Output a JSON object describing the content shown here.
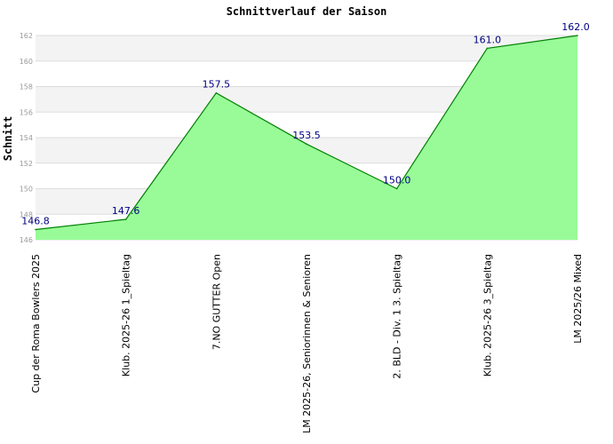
{
  "chart_data": {
    "type": "area",
    "title": "Schnittverlauf der Saison",
    "xlabel": "",
    "ylabel": "Schnitt",
    "categories": [
      "Cup der Roma Bowlers 2025",
      "Klub. 2025-26  1_Spieltag",
      "7.NO GUTTER Open",
      "LM 2025-26, Seniorinnen & Senioren",
      "2. BLD - Div. 1  3. Spieltag",
      "Klub. 2025-26  3_Spieltag",
      "LM 2025/26 Mixed"
    ],
    "values": [
      146.8,
      147.6,
      157.5,
      153.5,
      150.0,
      161.0,
      162.0
    ],
    "data_labels": [
      "146.8",
      "147.6",
      "157.5",
      "153.5",
      "150.0",
      "161.0",
      "162.0"
    ],
    "ylim": [
      146,
      162
    ],
    "yticks": [
      "146",
      "148",
      "150",
      "152",
      "154",
      "156",
      "158",
      "160",
      "162"
    ],
    "grid": true,
    "legend": "none",
    "colors": {
      "fill": "#98fb98",
      "line": "#008000",
      "band": "#f3f3f3",
      "grid": "#dddddd",
      "label": "#000080"
    }
  }
}
